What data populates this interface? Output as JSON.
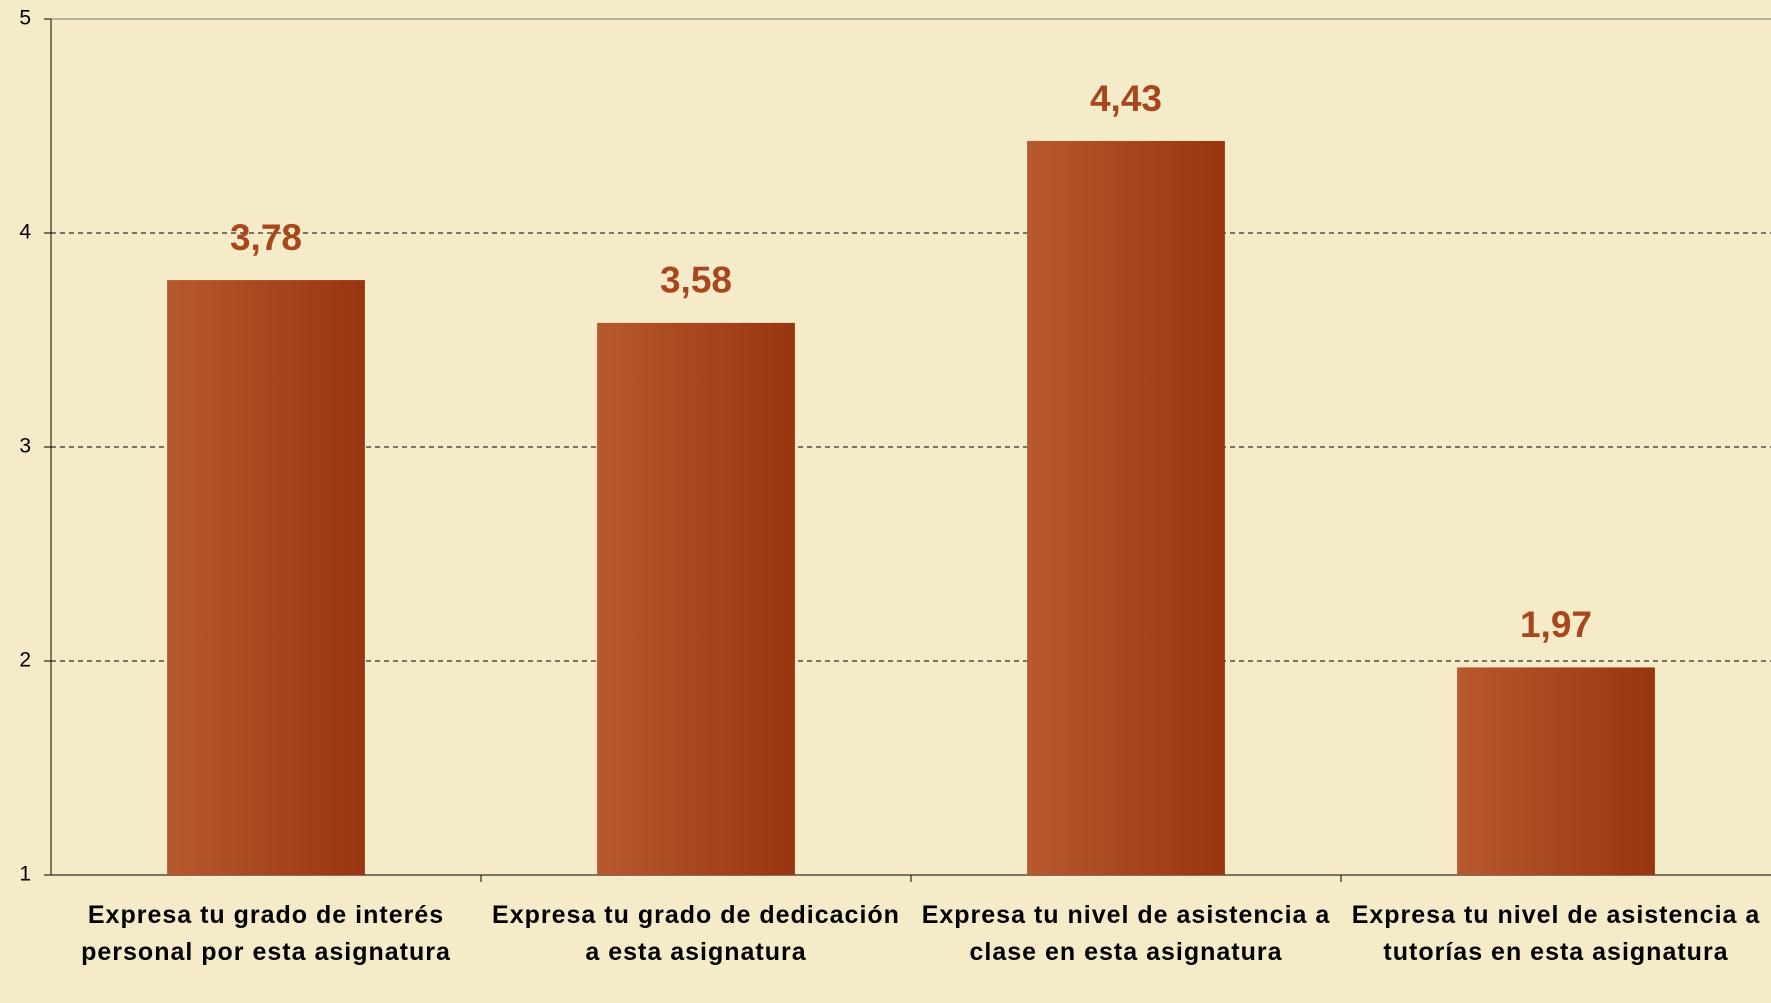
{
  "chart_data": {
    "type": "bar",
    "categories": [
      "Expresa tu grado de interés personal por esta asignatura",
      "Expresa tu grado de dedicación a esta asignatura",
      "Expresa tu nivel de asistencia a clase en esta asignatura",
      "Expresa tu nivel de asistencia a tutorías en esta asignatura"
    ],
    "values": [
      3.78,
      3.58,
      4.43,
      1.97
    ],
    "value_labels": [
      "3,78",
      "3,58",
      "4,43",
      "1,97"
    ],
    "color": "#a8461c",
    "ylim": [
      1,
      5
    ],
    "yticks": [
      1,
      2,
      3,
      4,
      5
    ],
    "grid": true
  }
}
